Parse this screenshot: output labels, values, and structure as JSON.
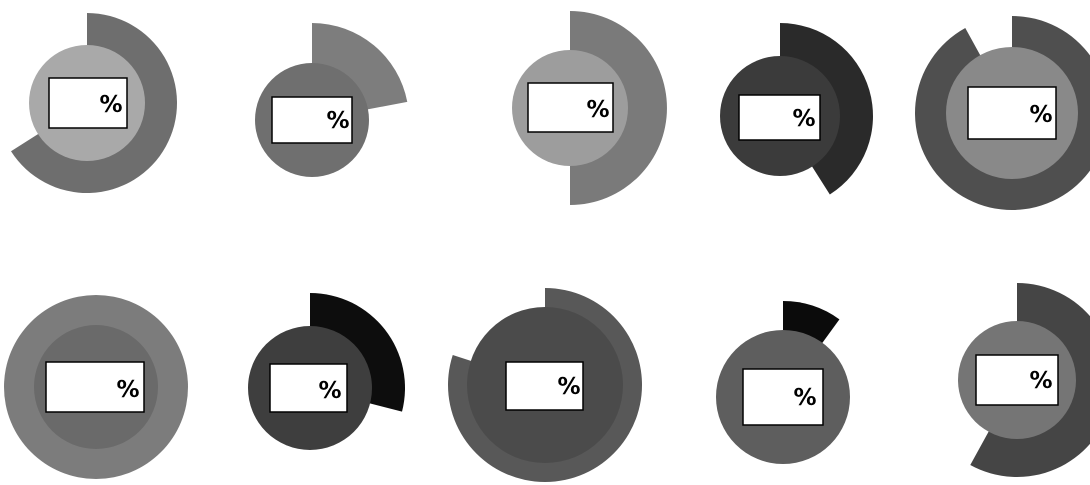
{
  "gauges": [
    {
      "label": "%",
      "fill": 0.66,
      "ring_color": "#6e6e6e",
      "disc_color": "#a9a9a9"
    },
    {
      "label": "%",
      "fill": 0.22,
      "ring_color": "#7d7d7d",
      "disc_color": "#6f6f6f"
    },
    {
      "label": "%",
      "fill": 0.5,
      "ring_color": "#7a7a7a",
      "disc_color": "#9d9d9d"
    },
    {
      "label": "%",
      "fill": 0.41,
      "ring_color": "#2a2a2a",
      "disc_color": "#3b3b3b"
    },
    {
      "label": "%",
      "fill": 0.92,
      "ring_color": "#4f4f4f",
      "disc_color": "#898989"
    },
    {
      "label": "%",
      "fill": 1.0,
      "ring_color": "#7c7c7c",
      "disc_color": "#6a6a6a"
    },
    {
      "label": "%",
      "fill": 0.29,
      "ring_color": "#0d0d0d",
      "disc_color": "#3e3e3e"
    },
    {
      "label": "%",
      "fill": 0.8,
      "ring_color": "#585858",
      "disc_color": "#4b4b4b"
    },
    {
      "label": "%",
      "fill": 0.1,
      "ring_color": "#0b0b0b",
      "disc_color": "#5e5e5e"
    },
    {
      "label": "%",
      "fill": 0.58,
      "ring_color": "#454545",
      "disc_color": "#757575"
    }
  ]
}
